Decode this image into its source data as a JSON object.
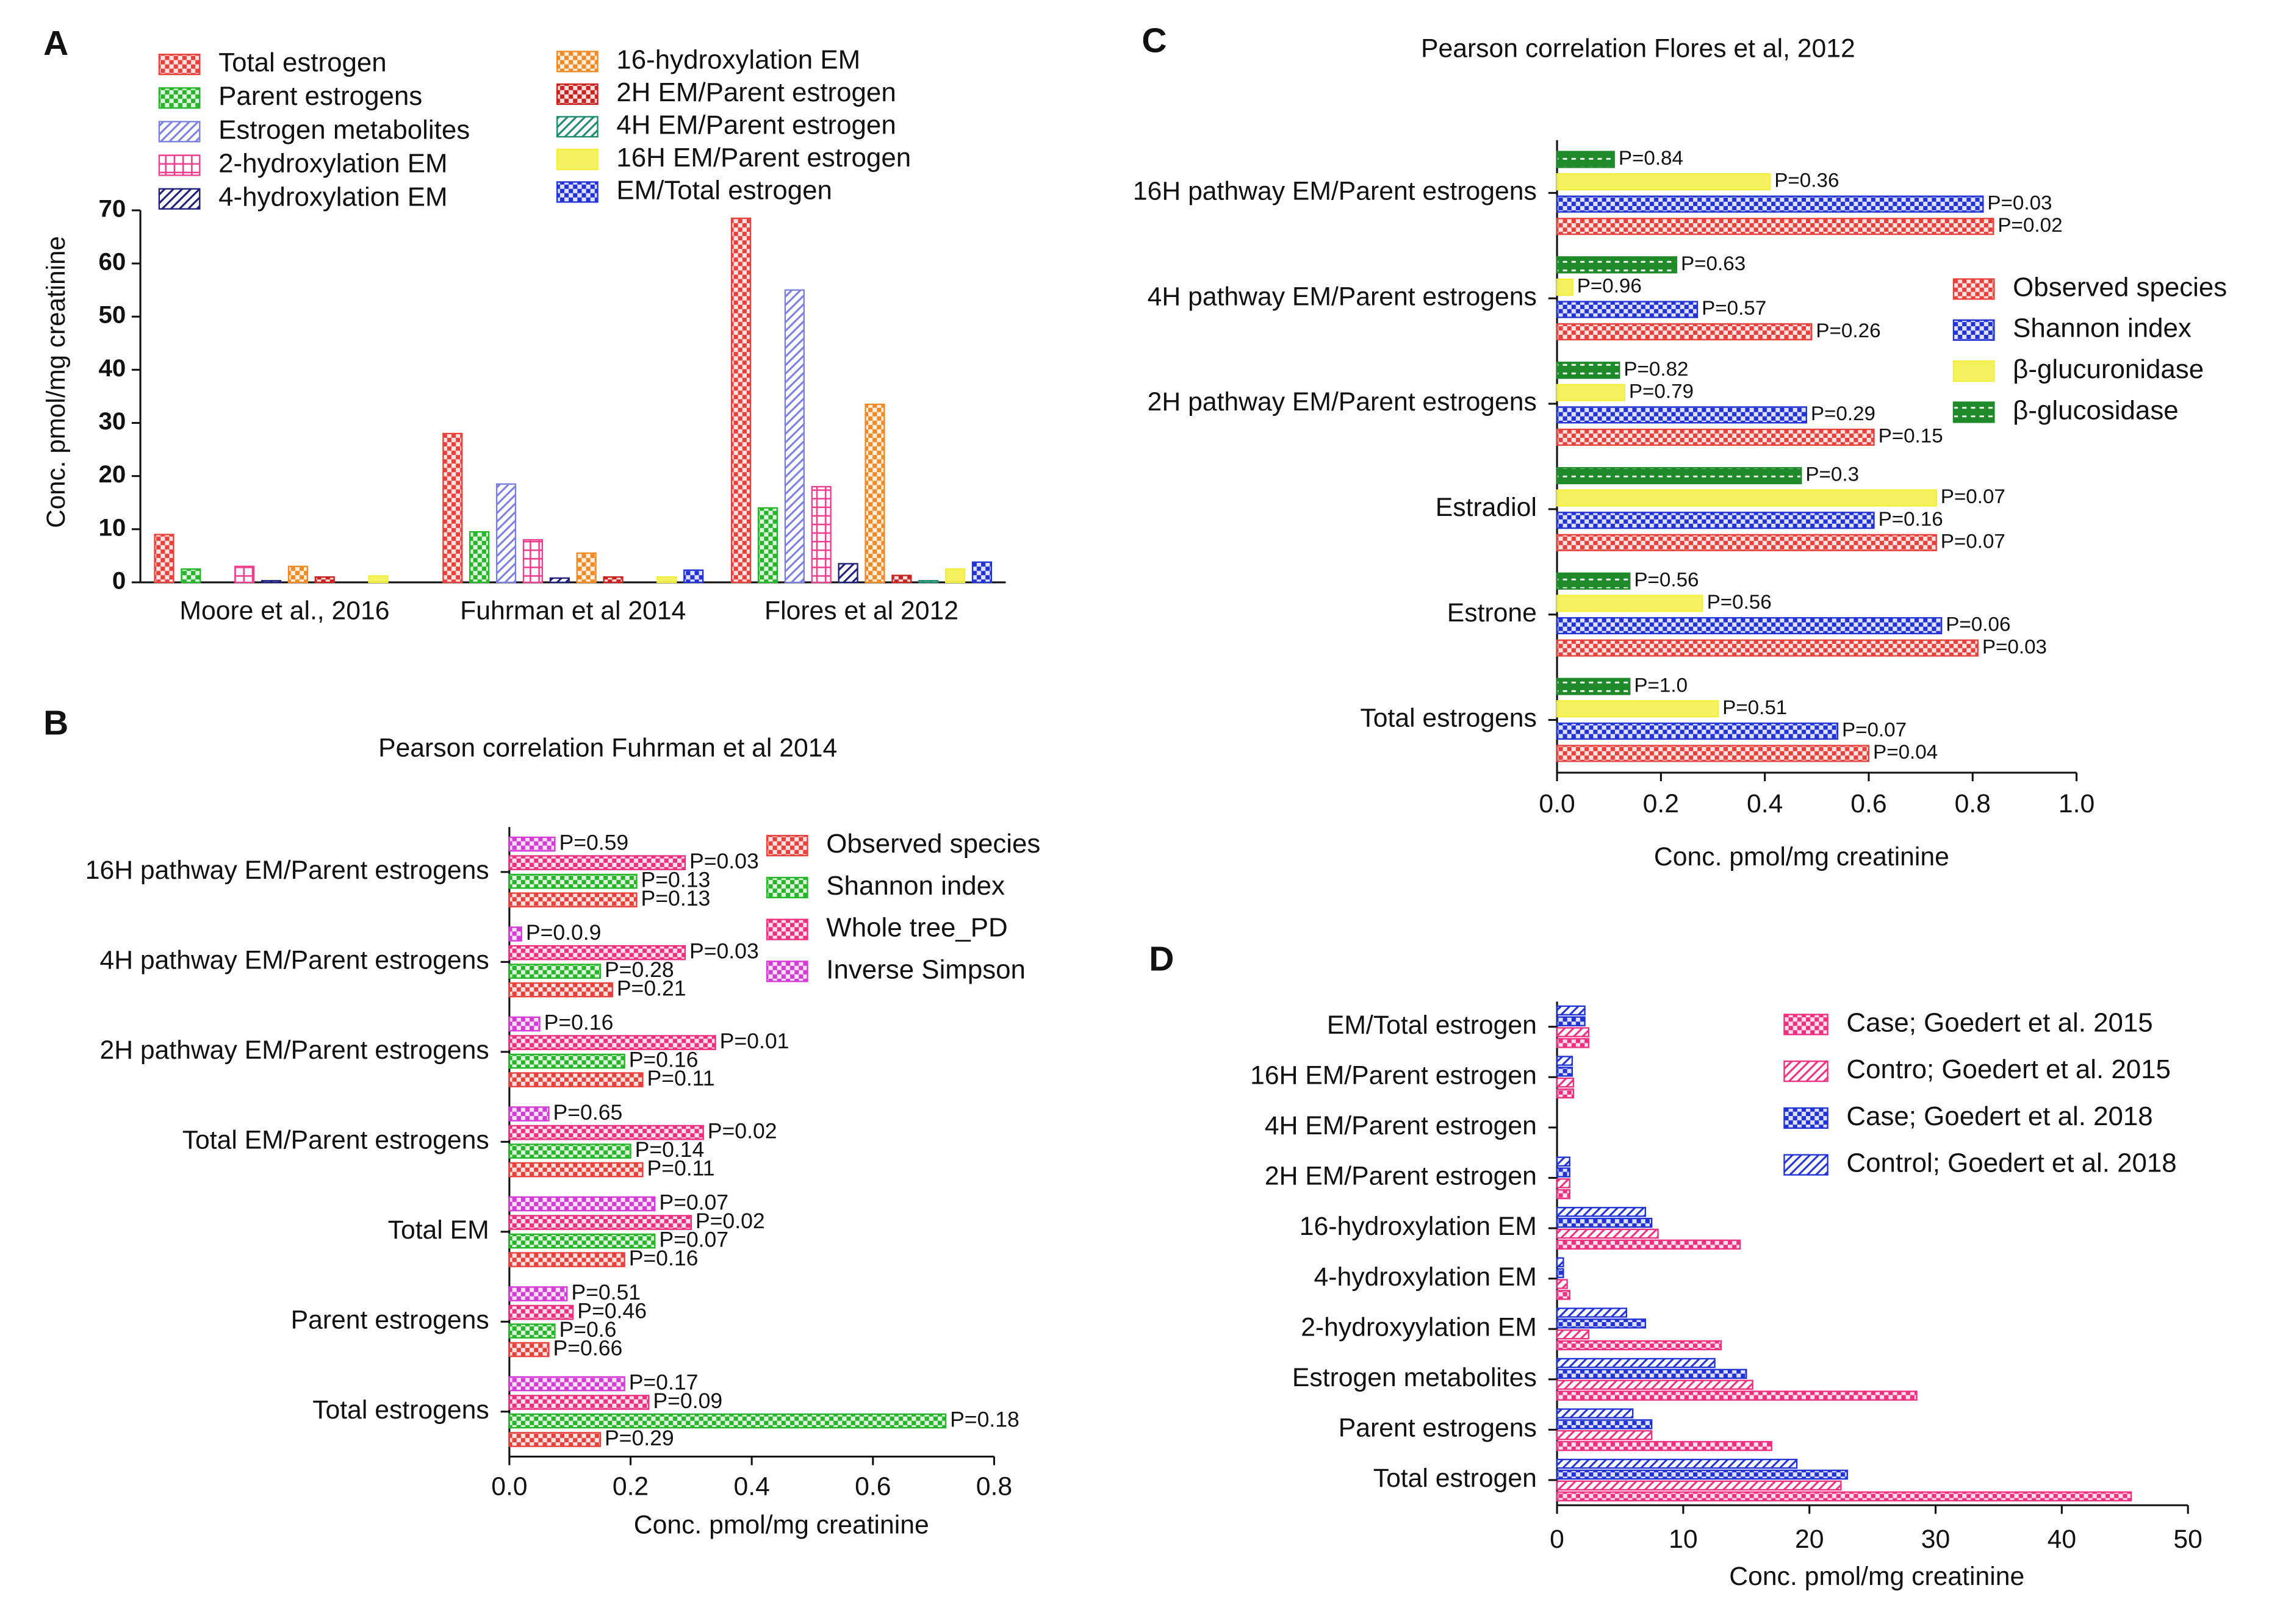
{
  "chart_data": [
    {
      "type": "bar",
      "panel": "A",
      "ylabel": "Conc. pmol/mg creatinine",
      "categories": [
        "Moore et al., 2016",
        "Fuhrman et al 2014",
        "Flores et al 2012"
      ],
      "ylim": [
        0,
        70
      ],
      "yticks": [
        0,
        10,
        20,
        30,
        40,
        50,
        60,
        70
      ],
      "series": [
        {
          "name": "Total estrogen",
          "color": "#e8413c",
          "pattern": "checker",
          "values": [
            9,
            28,
            68.5
          ]
        },
        {
          "name": "Parent estrogens",
          "color": "#27b52a",
          "pattern": "checker",
          "values": [
            2.5,
            9.5,
            14
          ]
        },
        {
          "name": "Estrogen metabolites",
          "color": "#7b7fe0",
          "pattern": "hatch",
          "values": [
            null,
            18.5,
            55
          ]
        },
        {
          "name": "2-hydroxylation EM",
          "color": "#ef3f8f",
          "pattern": "grid",
          "values": [
            3,
            8,
            18
          ]
        },
        {
          "name": "4-hydroxylation EM",
          "color": "#1d1d7a",
          "pattern": "hatch",
          "values": [
            0.3,
            0.8,
            3.5
          ]
        },
        {
          "name": "16-hydroxylation EM",
          "color": "#f08a24",
          "pattern": "checker",
          "values": [
            3,
            5.5,
            33.5
          ]
        },
        {
          "name": "2H EM/Parent estrogen",
          "color": "#c8231f",
          "pattern": "checker",
          "values": [
            1,
            1,
            1.3
          ]
        },
        {
          "name": "4H EM/Parent estrogen",
          "color": "#1d8a6a",
          "pattern": "hatch",
          "values": [
            null,
            null,
            0.3
          ]
        },
        {
          "name": "16H EM/Parent estrogen",
          "color": "#f2ef3a",
          "pattern": "plain",
          "values": [
            1.2,
            1,
            2.5
          ]
        },
        {
          "name": "EM/Total estrogen",
          "color": "#2233d6",
          "pattern": "checker",
          "values": [
            null,
            2.3,
            3.8
          ]
        }
      ]
    },
    {
      "type": "hbar",
      "panel": "B",
      "title": "Pearson correlation Fuhrman et al 2014",
      "xlabel": "Conc. pmol/mg creatinine",
      "categories": [
        "Total estrogens",
        "Parent estrogens",
        "Total EM",
        "Total EM/Parent estrogens",
        "2H pathway EM/Parent estrogens",
        "4H pathway EM/Parent estrogens",
        "16H pathway EM/Parent estrogens"
      ],
      "xlim": [
        0,
        0.8
      ],
      "xticks": [
        {
          "value": 0,
          "label": "0.0"
        },
        0.2,
        0.4,
        0.6,
        0.8
      ],
      "series": [
        {
          "name": "Observed species",
          "color": "#e8413c",
          "pattern": "checker",
          "values": [
            0.15,
            0.065,
            0.19,
            0.22,
            0.22,
            0.17,
            0.21
          ],
          "labels": [
            "P=0.29",
            "P=0.66",
            "P=0.16",
            "P=0.11",
            "P=0.11",
            "P=0.21",
            "P=0.13"
          ]
        },
        {
          "name": "Shannon index",
          "color": "#27b52a",
          "pattern": "checker",
          "values": [
            0.72,
            0.075,
            0.24,
            0.2,
            0.19,
            0.15,
            0.21
          ],
          "labels": [
            "P=0.18",
            "P=0.6",
            "P=0.07",
            "P=0.14",
            "P=0.16",
            "P=0.28",
            "P=0.13"
          ]
        },
        {
          "name": "Whole tree_PD",
          "color": "#ef2f7f",
          "pattern": "checker",
          "values": [
            0.23,
            0.105,
            0.3,
            0.32,
            0.34,
            0.29,
            0.29
          ],
          "labels": [
            "P=0.09",
            "P=0.46",
            "P=0.02",
            "P=0.02",
            "P=0.01",
            "P=0.03",
            "P=0.03"
          ]
        },
        {
          "name": "Inverse Simpson",
          "color": "#d43ad4",
          "pattern": "checker",
          "values": [
            0.19,
            0.095,
            0.24,
            0.065,
            0.05,
            0.02,
            0.075
          ],
          "labels": [
            "P=0.17",
            "P=0.51",
            "P=0.07",
            "P=0.65",
            "P=0.16",
            "P=0.0.9",
            "P=0.59"
          ]
        }
      ]
    },
    {
      "type": "hbar",
      "panel": "C",
      "title": "Pearson correlation Flores et al, 2012",
      "xlabel": "Conc. pmol/mg creatinine",
      "categories": [
        "Total estrogens",
        "Estrone",
        "Estradiol",
        "2H pathway EM/Parent estrogens",
        "4H pathway EM/Parent estrogens",
        "16H pathway EM/Parent estrogens"
      ],
      "xlim": [
        0,
        1
      ],
      "xticks": [
        {
          "value": 0,
          "label": "0.0"
        },
        0.2,
        0.4,
        0.6,
        0.8,
        {
          "value": 1,
          "label": "1.0"
        }
      ],
      "series": [
        {
          "name": "Observed species",
          "color": "#e8413c",
          "pattern": "checker",
          "values": [
            0.6,
            0.81,
            0.73,
            0.61,
            0.49,
            0.84
          ],
          "labels": [
            "P=0.04",
            "P=0.03",
            "P=0.07",
            "P=0.15",
            "P=0.26",
            "P=0.02"
          ]
        },
        {
          "name": "Shannon index",
          "color": "#2233d6",
          "pattern": "checker",
          "values": [
            0.54,
            0.74,
            0.61,
            0.48,
            0.27,
            0.82
          ],
          "labels": [
            "P=0.07",
            "P=0.06",
            "P=0.16",
            "P=0.29",
            "P=0.57",
            "P=0.03"
          ]
        },
        {
          "name": "β-glucuronidase",
          "color": "#f2ef3a",
          "pattern": "plain",
          "values": [
            0.31,
            0.28,
            0.73,
            0.13,
            0.03,
            0.41
          ],
          "labels": [
            "P=0.51",
            "P=0.56",
            "P=0.07",
            "P=0.79",
            "P=0.96",
            "P=0.36"
          ]
        },
        {
          "name": "β-glucosidase",
          "color": "#1f8a2a",
          "pattern": "dash",
          "values": [
            0.14,
            0.14,
            0.47,
            0.12,
            0.23,
            0.11
          ],
          "labels": [
            "P=1.0",
            "P=0.56",
            "P=0.3",
            "P=0.82",
            "P=0.63",
            "P=0.84"
          ]
        }
      ]
    },
    {
      "type": "hbar",
      "panel": "D",
      "xlabel": "Conc. pmol/mg creatinine",
      "categories": [
        "Total estrogen",
        "Parent estrogens",
        "Estrogen metabolites",
        "2-hydroxyylation EM",
        "4-hydroxylation EM",
        "16-hydroxylation EM",
        "2H EM/Parent estrogen",
        "4H EM/Parent estrogen",
        "16H EM/Parent estrogen",
        "EM/Total estrogen"
      ],
      "xlim": [
        0,
        50
      ],
      "xticks": [
        0,
        10,
        20,
        30,
        40,
        50
      ],
      "series": [
        {
          "name": "Case; Goedert et al. 2015",
          "color": "#ef2f7f",
          "pattern": "checker",
          "values": [
            45.5,
            17,
            28.5,
            13,
            1,
            14.5,
            1,
            0,
            1.3,
            2.5
          ]
        },
        {
          "name": "Contro; Goedert et al. 2015",
          "color": "#ef2f7f",
          "pattern": "hatch",
          "values": [
            22.5,
            7.5,
            15.5,
            2.5,
            0.8,
            8,
            1,
            0,
            1.3,
            2.5
          ]
        },
        {
          "name": "Case; Goedert et al. 2018",
          "color": "#2233d6",
          "pattern": "checker",
          "values": [
            23,
            7.5,
            15,
            7,
            0.5,
            7.5,
            1,
            0,
            1.2,
            2.2
          ]
        },
        {
          "name": "Control; Goedert et al. 2018",
          "color": "#2233d6",
          "pattern": "hatch",
          "values": [
            19,
            6,
            12.5,
            5.5,
            0.5,
            7,
            1,
            0,
            1.2,
            2.2
          ]
        }
      ]
    }
  ]
}
